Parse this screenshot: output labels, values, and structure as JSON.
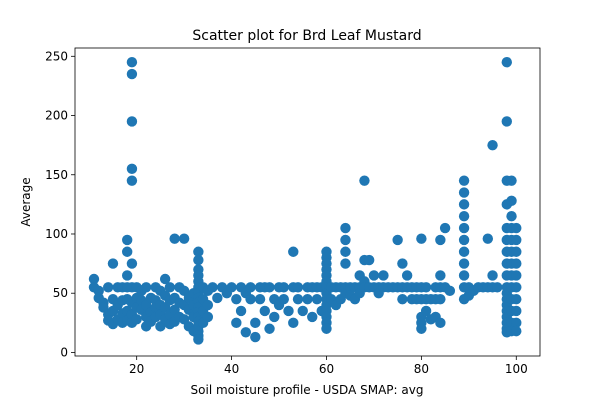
{
  "chart_data": {
    "type": "scatter",
    "title": "Scatter plot for Brd Leaf Mustard",
    "xlabel": "Soil moisture profile - USDA SMAP: avg",
    "ylabel": "Average",
    "xlim": [
      7,
      105
    ],
    "ylim": [
      -3,
      257
    ],
    "xticks": [
      20,
      40,
      60,
      80,
      100
    ],
    "yticks": [
      0,
      50,
      100,
      150,
      200,
      250
    ],
    "grid": false,
    "marker_color": "#1f77b4",
    "series": [
      {
        "points": [
          [
            11,
            62
          ],
          [
            11,
            55
          ],
          [
            12,
            52
          ],
          [
            12,
            46
          ],
          [
            13,
            42
          ],
          [
            13,
            38
          ],
          [
            14,
            55
          ],
          [
            14,
            32
          ],
          [
            14,
            27
          ],
          [
            15,
            75
          ],
          [
            15,
            45
          ],
          [
            15,
            35
          ],
          [
            15,
            24
          ],
          [
            16,
            55
          ],
          [
            16,
            40
          ],
          [
            16,
            28
          ],
          [
            17,
            55
          ],
          [
            17,
            44
          ],
          [
            17,
            33
          ],
          [
            17,
            25
          ],
          [
            18,
            95
          ],
          [
            18,
            85
          ],
          [
            18,
            65
          ],
          [
            18,
            55
          ],
          [
            18,
            45
          ],
          [
            18,
            35
          ],
          [
            18,
            27
          ],
          [
            19,
            245
          ],
          [
            19,
            235
          ],
          [
            19,
            195
          ],
          [
            19,
            155
          ],
          [
            19,
            145
          ],
          [
            19,
            75
          ],
          [
            19,
            55
          ],
          [
            19,
            42
          ],
          [
            19,
            32
          ],
          [
            19,
            25
          ],
          [
            20,
            55
          ],
          [
            20,
            46
          ],
          [
            20,
            38
          ],
          [
            20,
            28
          ],
          [
            21,
            52
          ],
          [
            21,
            44
          ],
          [
            21,
            36
          ],
          [
            22,
            55
          ],
          [
            22,
            40
          ],
          [
            22,
            30
          ],
          [
            22,
            22
          ],
          [
            23,
            46
          ],
          [
            23,
            34
          ],
          [
            23,
            26
          ],
          [
            24,
            55
          ],
          [
            24,
            44
          ],
          [
            24,
            38
          ],
          [
            24,
            30
          ],
          [
            25,
            52
          ],
          [
            25,
            40
          ],
          [
            25,
            32
          ],
          [
            25,
            22
          ],
          [
            26,
            62
          ],
          [
            26,
            48
          ],
          [
            26,
            38
          ],
          [
            26,
            28
          ],
          [
            27,
            55
          ],
          [
            27,
            44
          ],
          [
            27,
            32
          ],
          [
            27,
            24
          ],
          [
            28,
            96
          ],
          [
            28,
            46
          ],
          [
            28,
            36
          ],
          [
            28,
            26
          ],
          [
            29,
            55
          ],
          [
            29,
            42
          ],
          [
            29,
            30
          ],
          [
            30,
            96
          ],
          [
            30,
            52
          ],
          [
            30,
            40
          ],
          [
            30,
            28
          ],
          [
            31,
            46
          ],
          [
            31,
            36
          ],
          [
            31,
            22
          ],
          [
            32,
            50
          ],
          [
            32,
            40
          ],
          [
            32,
            30
          ],
          [
            32,
            18
          ],
          [
            33,
            85
          ],
          [
            33,
            78
          ],
          [
            33,
            70
          ],
          [
            33,
            65
          ],
          [
            33,
            60
          ],
          [
            33,
            55
          ],
          [
            33,
            50
          ],
          [
            33,
            46
          ],
          [
            33,
            42
          ],
          [
            33,
            38
          ],
          [
            33,
            34
          ],
          [
            33,
            30
          ],
          [
            33,
            26
          ],
          [
            33,
            22
          ],
          [
            33,
            18
          ],
          [
            33,
            14
          ],
          [
            33,
            11
          ],
          [
            34,
            55
          ],
          [
            34,
            45
          ],
          [
            34,
            35
          ],
          [
            34,
            25
          ],
          [
            35,
            52
          ],
          [
            35,
            40
          ],
          [
            35,
            30
          ],
          [
            36,
            55
          ],
          [
            37,
            46
          ],
          [
            38,
            55
          ],
          [
            39,
            50
          ],
          [
            40,
            55
          ],
          [
            41,
            45
          ],
          [
            41,
            25
          ],
          [
            42,
            55
          ],
          [
            42,
            35
          ],
          [
            43,
            50
          ],
          [
            43,
            17
          ],
          [
            44,
            55
          ],
          [
            44,
            45
          ],
          [
            45,
            25
          ],
          [
            45,
            13
          ],
          [
            46,
            55
          ],
          [
            46,
            45
          ],
          [
            47,
            55
          ],
          [
            47,
            35
          ],
          [
            48,
            55
          ],
          [
            48,
            20
          ],
          [
            49,
            45
          ],
          [
            49,
            30
          ],
          [
            50,
            55
          ],
          [
            50,
            40
          ],
          [
            51,
            55
          ],
          [
            51,
            45
          ],
          [
            52,
            35
          ],
          [
            53,
            85
          ],
          [
            53,
            55
          ],
          [
            53,
            25
          ],
          [
            54,
            55
          ],
          [
            54,
            45
          ],
          [
            55,
            35
          ],
          [
            56,
            55
          ],
          [
            56,
            45
          ],
          [
            57,
            55
          ],
          [
            57,
            30
          ],
          [
            58,
            55
          ],
          [
            58,
            45
          ],
          [
            59,
            55
          ],
          [
            59,
            35
          ],
          [
            60,
            85
          ],
          [
            60,
            80
          ],
          [
            60,
            75
          ],
          [
            60,
            70
          ],
          [
            60,
            65
          ],
          [
            60,
            60
          ],
          [
            60,
            55
          ],
          [
            60,
            50
          ],
          [
            60,
            45
          ],
          [
            60,
            40
          ],
          [
            60,
            35
          ],
          [
            60,
            30
          ],
          [
            60,
            25
          ],
          [
            60,
            20
          ],
          [
            61,
            55
          ],
          [
            61,
            45
          ],
          [
            62,
            55
          ],
          [
            62,
            40
          ],
          [
            63,
            55
          ],
          [
            63,
            45
          ],
          [
            64,
            105
          ],
          [
            64,
            95
          ],
          [
            64,
            85
          ],
          [
            64,
            75
          ],
          [
            64,
            55
          ],
          [
            64,
            50
          ],
          [
            65,
            55
          ],
          [
            65,
            48
          ],
          [
            66,
            55
          ],
          [
            66,
            45
          ],
          [
            67,
            65
          ],
          [
            67,
            55
          ],
          [
            67,
            50
          ],
          [
            68,
            145
          ],
          [
            68,
            78
          ],
          [
            68,
            60
          ],
          [
            68,
            55
          ],
          [
            69,
            78
          ],
          [
            69,
            55
          ],
          [
            70,
            65
          ],
          [
            70,
            55
          ],
          [
            71,
            55
          ],
          [
            71,
            50
          ],
          [
            72,
            65
          ],
          [
            72,
            55
          ],
          [
            73,
            55
          ],
          [
            74,
            55
          ],
          [
            75,
            95
          ],
          [
            75,
            55
          ],
          [
            76,
            75
          ],
          [
            76,
            55
          ],
          [
            76,
            45
          ],
          [
            77,
            65
          ],
          [
            77,
            55
          ],
          [
            78,
            55
          ],
          [
            78,
            45
          ],
          [
            79,
            55
          ],
          [
            79,
            45
          ],
          [
            80,
            96
          ],
          [
            80,
            55
          ],
          [
            80,
            45
          ],
          [
            80,
            30
          ],
          [
            80,
            25
          ],
          [
            80,
            20
          ],
          [
            81,
            55
          ],
          [
            81,
            45
          ],
          [
            81,
            35
          ],
          [
            82,
            45
          ],
          [
            82,
            28
          ],
          [
            83,
            55
          ],
          [
            83,
            45
          ],
          [
            83,
            30
          ],
          [
            84,
            95
          ],
          [
            84,
            65
          ],
          [
            84,
            55
          ],
          [
            84,
            45
          ],
          [
            84,
            25
          ],
          [
            85,
            105
          ],
          [
            85,
            55
          ],
          [
            86,
            52
          ],
          [
            89,
            145
          ],
          [
            89,
            135
          ],
          [
            89,
            125
          ],
          [
            89,
            115
          ],
          [
            89,
            105
          ],
          [
            89,
            95
          ],
          [
            89,
            85
          ],
          [
            89,
            75
          ],
          [
            89,
            65
          ],
          [
            89,
            55
          ],
          [
            89,
            45
          ],
          [
            90,
            55
          ],
          [
            90,
            48
          ],
          [
            91,
            52
          ],
          [
            92,
            55
          ],
          [
            93,
            55
          ],
          [
            94,
            96
          ],
          [
            94,
            55
          ],
          [
            95,
            175
          ],
          [
            95,
            65
          ],
          [
            95,
            55
          ],
          [
            96,
            55
          ],
          [
            98,
            245
          ],
          [
            98,
            195
          ],
          [
            98,
            145
          ],
          [
            98,
            125
          ],
          [
            98,
            105
          ],
          [
            98,
            95
          ],
          [
            98,
            85
          ],
          [
            98,
            75
          ],
          [
            98,
            65
          ],
          [
            98,
            55
          ],
          [
            98,
            50
          ],
          [
            98,
            45
          ],
          [
            98,
            40
          ],
          [
            98,
            35
          ],
          [
            98,
            30
          ],
          [
            98,
            25
          ],
          [
            98,
            20
          ],
          [
            98,
            17
          ],
          [
            99,
            145
          ],
          [
            99,
            128
          ],
          [
            99,
            115
          ],
          [
            99,
            105
          ],
          [
            99,
            95
          ],
          [
            99,
            85
          ],
          [
            99,
            75
          ],
          [
            99,
            65
          ],
          [
            99,
            55
          ],
          [
            99,
            45
          ],
          [
            99,
            35
          ],
          [
            99,
            25
          ],
          [
            99,
            18
          ],
          [
            100,
            105
          ],
          [
            100,
            95
          ],
          [
            100,
            85
          ],
          [
            100,
            75
          ],
          [
            100,
            65
          ],
          [
            100,
            55
          ],
          [
            100,
            45
          ],
          [
            100,
            35
          ],
          [
            100,
            25
          ],
          [
            100,
            18
          ]
        ]
      }
    ]
  }
}
